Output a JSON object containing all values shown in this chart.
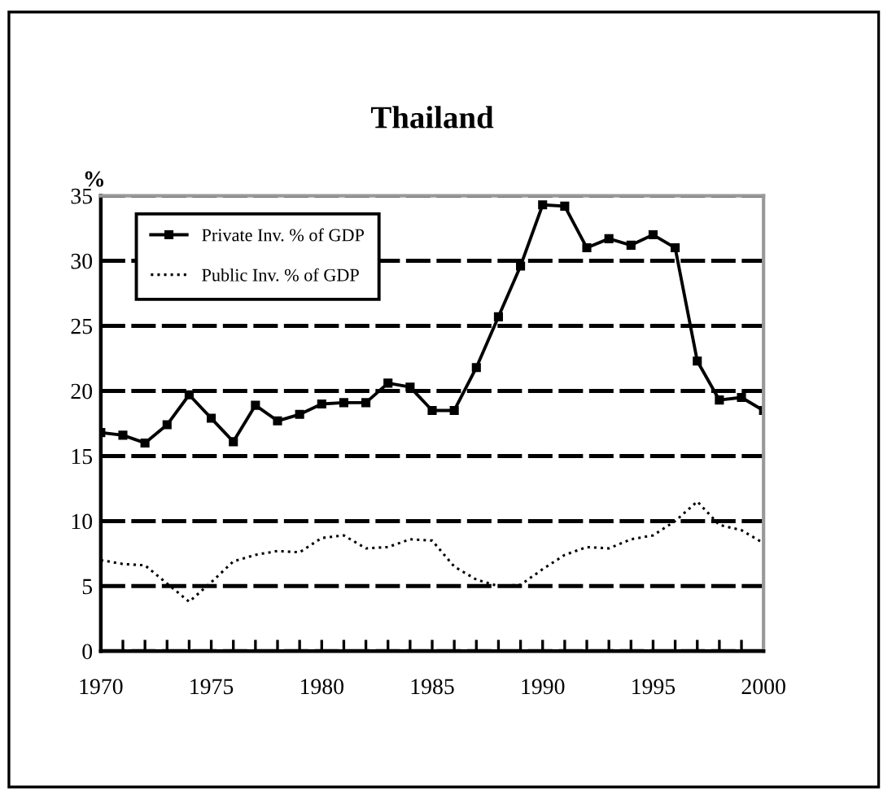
{
  "chart_data": {
    "type": "line",
    "title": "Thailand",
    "ylabel": "%",
    "x": [
      1970,
      1971,
      1972,
      1973,
      1974,
      1975,
      1976,
      1977,
      1978,
      1979,
      1980,
      1981,
      1982,
      1983,
      1984,
      1985,
      1986,
      1987,
      1988,
      1989,
      1990,
      1991,
      1992,
      1993,
      1994,
      1995,
      1996,
      1997,
      1998,
      1999,
      2000
    ],
    "series": [
      {
        "name": "Private Inv. % of GDP",
        "color": "#000000",
        "marker": "square",
        "line_style": "solid",
        "values": [
          16.8,
          16.6,
          16.0,
          17.4,
          19.7,
          17.9,
          16.1,
          18.9,
          17.7,
          18.2,
          19.0,
          19.1,
          19.1,
          20.6,
          20.3,
          18.5,
          18.5,
          21.8,
          25.7,
          29.6,
          34.3,
          34.2,
          31.0,
          31.7,
          31.2,
          32.0,
          31.0,
          22.3,
          19.3,
          19.5,
          18.5
        ]
      },
      {
        "name": "Public Inv. % of GDP",
        "color": "#000000",
        "marker": "none",
        "line_style": "dotted",
        "values": [
          7.0,
          6.7,
          6.6,
          5.2,
          3.8,
          5.3,
          6.9,
          7.4,
          7.7,
          7.6,
          8.7,
          8.9,
          7.9,
          8.0,
          8.6,
          8.5,
          6.5,
          5.5,
          5.0,
          5.1,
          6.3,
          7.4,
          8.0,
          7.9,
          8.6,
          8.9,
          10.0,
          11.5,
          9.7,
          9.3,
          8.3
        ]
      }
    ],
    "xlim": [
      1970,
      2000
    ],
    "xticks": [
      1970,
      {
        "value": 1971,
        "label": null
      },
      {
        "value": 1972,
        "label": null
      },
      {
        "value": 1973,
        "label": null
      },
      {
        "value": 1974,
        "label": null
      },
      1975,
      {
        "value": 1976,
        "label": null
      },
      {
        "value": 1977,
        "label": null
      },
      {
        "value": 1978,
        "label": null
      },
      {
        "value": 1979,
        "label": null
      },
      1980,
      {
        "value": 1981,
        "label": null
      },
      {
        "value": 1982,
        "label": null
      },
      {
        "value": 1983,
        "label": null
      },
      {
        "value": 1984,
        "label": null
      },
      1985,
      {
        "value": 1986,
        "label": null
      },
      {
        "value": 1987,
        "label": null
      },
      {
        "value": 1988,
        "label": null
      },
      {
        "value": 1989,
        "label": null
      },
      1990,
      {
        "value": 1991,
        "label": null
      },
      {
        "value": 1992,
        "label": null
      },
      {
        "value": 1993,
        "label": null
      },
      {
        "value": 1994,
        "label": null
      },
      1995,
      {
        "value": 1996,
        "label": null
      },
      {
        "value": 1997,
        "label": null
      },
      {
        "value": 1998,
        "label": null
      },
      {
        "value": 1999,
        "label": null
      },
      2000
    ],
    "ylim": [
      0,
      35
    ],
    "yticks": [
      0,
      5,
      10,
      15,
      20,
      25,
      30,
      35
    ],
    "grid": "y",
    "legend": "top left"
  }
}
